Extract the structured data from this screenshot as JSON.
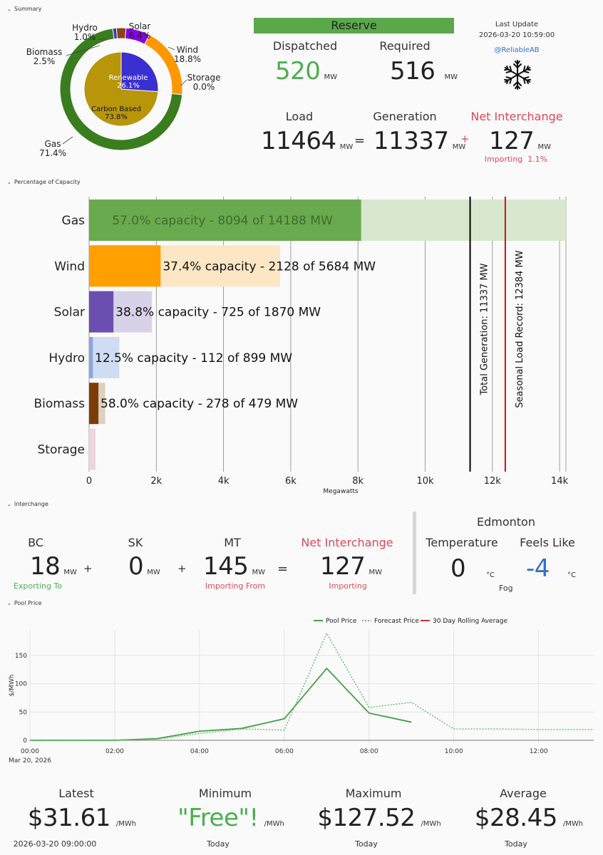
{
  "sections": {
    "summary": "Summary",
    "capacity": "Percentage of Capacity",
    "interchange": "Interchange",
    "pool_price": "Pool Price"
  },
  "donut": {
    "outer": [
      {
        "name": "Hydro",
        "pct": "1.0%",
        "value": 1.0,
        "color": "#3b3bb8"
      },
      {
        "name": "Biomass",
        "pct": "2.5%",
        "value": 2.5,
        "color": "#8b4513"
      },
      {
        "name": "Solar",
        "pct": "6.4%",
        "value": 6.4,
        "color": "#8a00e6"
      },
      {
        "name": "Wind",
        "pct": "18.8%",
        "value": 18.8,
        "color": "#ff9800"
      },
      {
        "name": "Storage",
        "pct": "0.0%",
        "value": 0.0,
        "color": "#f5b7c0"
      },
      {
        "name": "Gas",
        "pct": "71.4%",
        "value": 71.4,
        "color": "#3a7d1f"
      }
    ],
    "inner": [
      {
        "name": "Renewable",
        "pct": "26.1%",
        "value": 26.1,
        "color": "#3a2fd0"
      },
      {
        "name": "Carbon Based",
        "pct": "73.8%",
        "value": 73.8,
        "color": "#b8960a"
      }
    ]
  },
  "reserve": {
    "title": "Reserve",
    "dispatched_label": "Dispatched",
    "dispatched": "520",
    "dispatched_unit": "MW",
    "required_label": "Required",
    "required": "516",
    "required_unit": "MW"
  },
  "update": {
    "label": "Last Update",
    "time": "2026-03-20 10:59:00",
    "handle": "@ReliableAB",
    "icon": "snowflake-icon"
  },
  "balance": {
    "load_label": "Load",
    "load": "11464",
    "load_unit": "MW",
    "eq": "=",
    "gen_label": "Generation",
    "gen": "11337",
    "gen_unit": "MW",
    "plus": "+",
    "net_label": "Net Interchange",
    "net": "127",
    "net_unit": "MW",
    "net_status": "Importing  1.1%"
  },
  "capacity": {
    "xlabel": "Megawatts",
    "xmax": 14500,
    "ticks": [
      {
        "v": 0,
        "l": "0"
      },
      {
        "v": 2000,
        "l": "2k"
      },
      {
        "v": 4000,
        "l": "4k"
      },
      {
        "v": 6000,
        "l": "6k"
      },
      {
        "v": 8000,
        "l": "8k"
      },
      {
        "v": 10000,
        "l": "10k"
      },
      {
        "v": 12000,
        "l": "12k"
      },
      {
        "v": 14000,
        "l": "14k"
      }
    ],
    "gridlines": [
      2000,
      4000,
      6000,
      8000,
      10000,
      12000,
      14000,
      14188
    ],
    "rows": [
      {
        "name": "Gas",
        "value": 8094,
        "cap": 14188,
        "label": "57.0% capacity - 8094 of 14188 MW",
        "color": "#6aaa4e",
        "bg": "#d7e8cf"
      },
      {
        "name": "Wind",
        "value": 2128,
        "cap": 5684,
        "label": "37.4% capacity - 2128 of 5684 MW",
        "color": "#ff9f00",
        "bg": "#fde6c4"
      },
      {
        "name": "Solar",
        "value": 725,
        "cap": 1870,
        "label": "38.8% capacity - 725 of 1870 MW",
        "color": "#6b4fb0",
        "bg": "#d8d2e8"
      },
      {
        "name": "Hydro",
        "value": 112,
        "cap": 899,
        "label": "12.5% capacity - 112 of 899 MW",
        "color": "#8aa6e0",
        "bg": "#cfdcf4"
      },
      {
        "name": "Biomass",
        "value": 278,
        "cap": 479,
        "label": "58.0% capacity - 278 of 479 MW",
        "color": "#7a3d0a",
        "bg": "#dfcfc0"
      },
      {
        "name": "Storage",
        "value": 0,
        "cap": 190,
        "label": "",
        "color": "#e9a5b4",
        "bg": "#ead6dc"
      }
    ],
    "refs": [
      {
        "value": 11337,
        "label": "Total Generation: 11337 MW",
        "color": "#000"
      },
      {
        "value": 12384,
        "label": "Seasonal Load Record: 12384 MW",
        "color": "#d01010"
      }
    ]
  },
  "interchange": {
    "bc": {
      "label": "BC",
      "value": "18",
      "unit": "MW",
      "status": "Exporting To"
    },
    "sk": {
      "label": "SK",
      "value": "0",
      "unit": "MW"
    },
    "mt": {
      "label": "MT",
      "value": "145",
      "unit": "MW",
      "status": "Importing From"
    },
    "net": {
      "label": "Net Interchange",
      "value": "127",
      "unit": "MW",
      "status": "Importing"
    },
    "plus": "+",
    "eq": "="
  },
  "weather": {
    "city": "Edmonton",
    "temp_label": "Temperature",
    "temp": "0",
    "temp_unit": "°C",
    "cond": "Fog",
    "feels_label": "Feels Like",
    "feels": "-4",
    "feels_unit": "°C"
  },
  "chart_data": {
    "type": "line",
    "ylabel": "$/MWh",
    "ylim": [
      0,
      195
    ],
    "yticks": [
      0,
      50,
      100,
      150
    ],
    "xlim": [
      0,
      13.3
    ],
    "xticks": [
      {
        "v": 0,
        "l": "00:00"
      },
      {
        "v": 2,
        "l": "02:00"
      },
      {
        "v": 4,
        "l": "04:00"
      },
      {
        "v": 6,
        "l": "06:00"
      },
      {
        "v": 8,
        "l": "08:00"
      },
      {
        "v": 10,
        "l": "10:00"
      },
      {
        "v": 12,
        "l": "12:00"
      }
    ],
    "date_label": "Mar 20, 2026",
    "legend_position": "top",
    "series": [
      {
        "name": "Pool Price",
        "style": "solid",
        "color": "#43a047",
        "x": [
          0,
          1,
          2,
          3,
          4,
          5,
          6,
          7,
          8,
          9
        ],
        "y": [
          0,
          0,
          0,
          3,
          16,
          21,
          38,
          127,
          48,
          32
        ]
      },
      {
        "name": "Forecast Price",
        "style": "dotted",
        "color": "#66bb6a",
        "x": [
          0,
          1,
          2,
          3,
          4,
          5,
          6,
          7,
          8,
          9,
          10,
          11,
          12,
          13.3
        ],
        "y": [
          0,
          0,
          0,
          2,
          12,
          20,
          18,
          189,
          58,
          67,
          20,
          20,
          19,
          19
        ]
      },
      {
        "name": "30 Day Rolling Average",
        "style": "solid",
        "color": "#d32f2f",
        "x": [],
        "y": []
      }
    ]
  },
  "stats": [
    {
      "label": "Latest",
      "value": "$31.61",
      "unit": "/MWh",
      "sub": "2026-03-20 09:00:00"
    },
    {
      "label": "Minimum",
      "value": "\"Free\"!",
      "unit": "/MWh",
      "sub": "Today"
    },
    {
      "label": "Maximum",
      "value": "$127.52",
      "unit": "/MWh",
      "sub": "Today"
    },
    {
      "label": "Average",
      "value": "$28.45",
      "unit": "/MWh",
      "sub": "Today"
    }
  ]
}
